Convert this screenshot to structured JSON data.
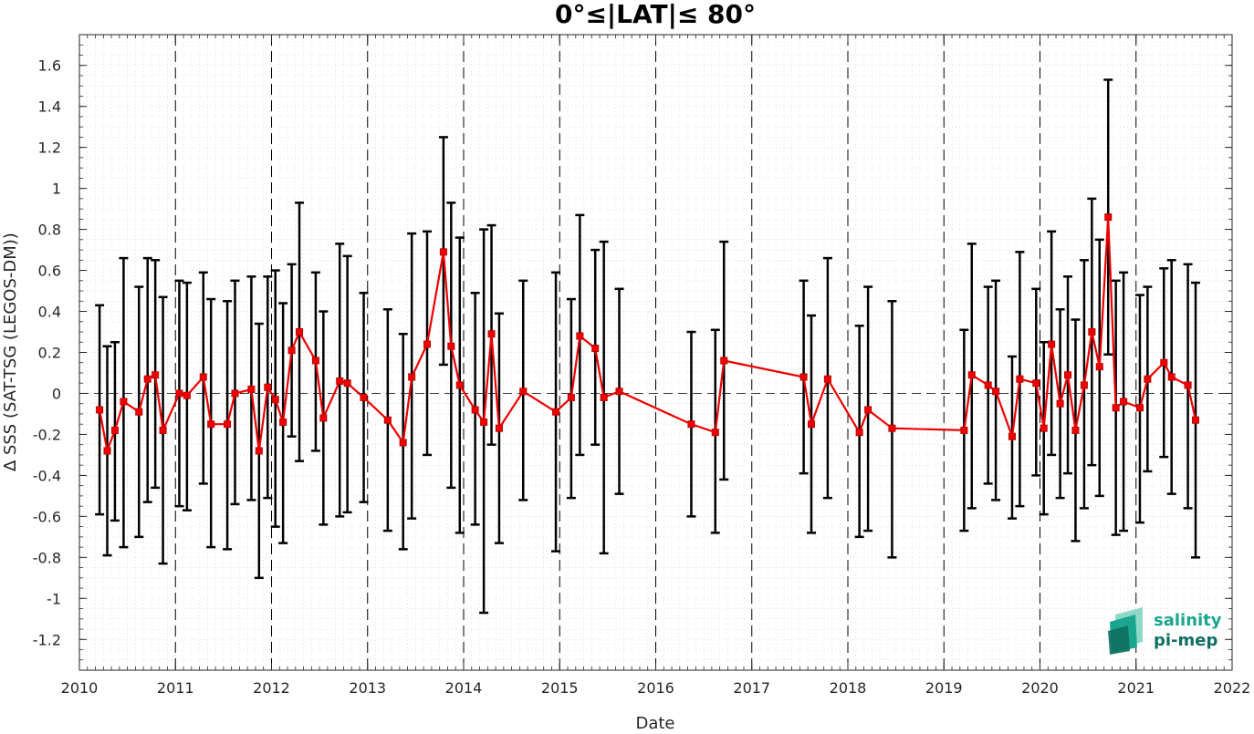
{
  "chart_data": {
    "type": "line",
    "title": "0°≤|LAT|≤ 80°",
    "xlabel": "Date",
    "ylabel": "∆ SSS (SAT-TSG (LEGOS-DM))",
    "xlim": [
      2010,
      2022
    ],
    "ylim": [
      -1.35,
      1.75
    ],
    "x_ticks": [
      2010,
      2011,
      2012,
      2013,
      2014,
      2015,
      2016,
      2017,
      2018,
      2019,
      2020,
      2021,
      2022
    ],
    "y_ticks": [
      -1.2,
      -1,
      -0.8,
      -0.6,
      -0.4,
      -0.2,
      0,
      0.2,
      0.4,
      0.6,
      0.8,
      1,
      1.2,
      1.4,
      1.6
    ],
    "grid": "minor dotted",
    "year_separators": "dashed vertical lines at each year",
    "zero_line": "dashed horizontal line at 0",
    "series": [
      {
        "color": "#ee0000",
        "errorbar_color": "#000000",
        "marker": "square",
        "points": [
          {
            "x": 2010.21,
            "y": -0.08,
            "lo": -0.59,
            "hi": 0.43
          },
          {
            "x": 2010.29,
            "y": -0.28,
            "lo": -0.79,
            "hi": 0.23
          },
          {
            "x": 2010.37,
            "y": -0.18,
            "lo": -0.62,
            "hi": 0.25
          },
          {
            "x": 2010.46,
            "y": -0.04,
            "lo": -0.75,
            "hi": 0.66
          },
          {
            "x": 2010.62,
            "y": -0.09,
            "lo": -0.7,
            "hi": 0.52
          },
          {
            "x": 2010.71,
            "y": 0.07,
            "lo": -0.53,
            "hi": 0.66
          },
          {
            "x": 2010.79,
            "y": 0.09,
            "lo": -0.46,
            "hi": 0.65
          },
          {
            "x": 2010.87,
            "y": -0.18,
            "lo": -0.83,
            "hi": 0.47
          },
          {
            "x": 2011.04,
            "y": 0.0,
            "lo": -0.55,
            "hi": 0.55
          },
          {
            "x": 2011.12,
            "y": -0.01,
            "lo": -0.57,
            "hi": 0.54
          },
          {
            "x": 2011.29,
            "y": 0.08,
            "lo": -0.44,
            "hi": 0.59
          },
          {
            "x": 2011.37,
            "y": -0.15,
            "lo": -0.75,
            "hi": 0.46
          },
          {
            "x": 2011.54,
            "y": -0.15,
            "lo": -0.76,
            "hi": 0.45
          },
          {
            "x": 2011.62,
            "y": 0.0,
            "lo": -0.54,
            "hi": 0.55
          },
          {
            "x": 2011.79,
            "y": 0.02,
            "lo": -0.52,
            "hi": 0.57
          },
          {
            "x": 2011.87,
            "y": -0.28,
            "lo": -0.9,
            "hi": 0.34
          },
          {
            "x": 2011.96,
            "y": 0.03,
            "lo": -0.51,
            "hi": 0.57
          },
          {
            "x": 2012.04,
            "y": -0.03,
            "lo": -0.65,
            "hi": 0.6
          },
          {
            "x": 2012.12,
            "y": -0.14,
            "lo": -0.73,
            "hi": 0.44
          },
          {
            "x": 2012.21,
            "y": 0.21,
            "lo": -0.21,
            "hi": 0.63
          },
          {
            "x": 2012.29,
            "y": 0.3,
            "lo": -0.33,
            "hi": 0.93
          },
          {
            "x": 2012.46,
            "y": 0.16,
            "lo": -0.28,
            "hi": 0.59
          },
          {
            "x": 2012.54,
            "y": -0.12,
            "lo": -0.64,
            "hi": 0.4
          },
          {
            "x": 2012.71,
            "y": 0.06,
            "lo": -0.6,
            "hi": 0.73
          },
          {
            "x": 2012.79,
            "y": 0.05,
            "lo": -0.58,
            "hi": 0.67
          },
          {
            "x": 2012.96,
            "y": -0.02,
            "lo": -0.53,
            "hi": 0.49
          },
          {
            "x": 2013.21,
            "y": -0.13,
            "lo": -0.67,
            "hi": 0.41
          },
          {
            "x": 2013.37,
            "y": -0.24,
            "lo": -0.76,
            "hi": 0.29
          },
          {
            "x": 2013.46,
            "y": 0.08,
            "lo": -0.61,
            "hi": 0.78
          },
          {
            "x": 2013.62,
            "y": 0.24,
            "lo": -0.3,
            "hi": 0.79
          },
          {
            "x": 2013.79,
            "y": 0.69,
            "lo": 0.14,
            "hi": 1.25
          },
          {
            "x": 2013.87,
            "y": 0.23,
            "lo": -0.46,
            "hi": 0.93
          },
          {
            "x": 2013.96,
            "y": 0.04,
            "lo": -0.68,
            "hi": 0.76
          },
          {
            "x": 2014.12,
            "y": -0.08,
            "lo": -0.64,
            "hi": 0.49
          },
          {
            "x": 2014.21,
            "y": -0.14,
            "lo": -1.07,
            "hi": 0.8
          },
          {
            "x": 2014.29,
            "y": 0.29,
            "lo": -0.25,
            "hi": 0.82
          },
          {
            "x": 2014.37,
            "y": -0.17,
            "lo": -0.73,
            "hi": 0.39
          },
          {
            "x": 2014.62,
            "y": 0.01,
            "lo": -0.52,
            "hi": 0.55
          },
          {
            "x": 2014.96,
            "y": -0.09,
            "lo": -0.77,
            "hi": 0.59
          },
          {
            "x": 2015.12,
            "y": -0.02,
            "lo": -0.51,
            "hi": 0.46
          },
          {
            "x": 2015.21,
            "y": 0.28,
            "lo": -0.3,
            "hi": 0.87
          },
          {
            "x": 2015.37,
            "y": 0.22,
            "lo": -0.25,
            "hi": 0.7
          },
          {
            "x": 2015.46,
            "y": -0.02,
            "lo": -0.78,
            "hi": 0.74
          },
          {
            "x": 2015.62,
            "y": 0.01,
            "lo": -0.49,
            "hi": 0.51
          },
          {
            "x": 2016.37,
            "y": -0.15,
            "lo": -0.6,
            "hi": 0.3
          },
          {
            "x": 2016.62,
            "y": -0.19,
            "lo": -0.68,
            "hi": 0.31
          },
          {
            "x": 2016.71,
            "y": 0.16,
            "lo": -0.42,
            "hi": 0.74
          },
          {
            "x": 2017.54,
            "y": 0.08,
            "lo": -0.39,
            "hi": 0.55
          },
          {
            "x": 2017.62,
            "y": -0.15,
            "lo": -0.68,
            "hi": 0.38
          },
          {
            "x": 2017.79,
            "y": 0.07,
            "lo": -0.51,
            "hi": 0.66
          },
          {
            "x": 2018.12,
            "y": -0.19,
            "lo": -0.7,
            "hi": 0.33
          },
          {
            "x": 2018.21,
            "y": -0.08,
            "lo": -0.67,
            "hi": 0.52
          },
          {
            "x": 2018.46,
            "y": -0.17,
            "lo": -0.8,
            "hi": 0.45
          },
          {
            "x": 2019.21,
            "y": -0.18,
            "lo": -0.67,
            "hi": 0.31
          },
          {
            "x": 2019.29,
            "y": 0.09,
            "lo": -0.56,
            "hi": 0.73
          },
          {
            "x": 2019.46,
            "y": 0.04,
            "lo": -0.44,
            "hi": 0.52
          },
          {
            "x": 2019.54,
            "y": 0.01,
            "lo": -0.52,
            "hi": 0.55
          },
          {
            "x": 2019.71,
            "y": -0.21,
            "lo": -0.61,
            "hi": 0.18
          },
          {
            "x": 2019.79,
            "y": 0.07,
            "lo": -0.55,
            "hi": 0.69
          },
          {
            "x": 2019.96,
            "y": 0.05,
            "lo": -0.4,
            "hi": 0.51
          },
          {
            "x": 2020.04,
            "y": -0.17,
            "lo": -0.59,
            "hi": 0.25
          },
          {
            "x": 2020.12,
            "y": 0.24,
            "lo": -0.3,
            "hi": 0.79
          },
          {
            "x": 2020.21,
            "y": -0.05,
            "lo": -0.51,
            "hi": 0.41
          },
          {
            "x": 2020.29,
            "y": 0.09,
            "lo": -0.39,
            "hi": 0.57
          },
          {
            "x": 2020.37,
            "y": -0.18,
            "lo": -0.72,
            "hi": 0.36
          },
          {
            "x": 2020.46,
            "y": 0.04,
            "lo": -0.56,
            "hi": 0.65
          },
          {
            "x": 2020.54,
            "y": 0.3,
            "lo": -0.35,
            "hi": 0.95
          },
          {
            "x": 2020.62,
            "y": 0.13,
            "lo": -0.5,
            "hi": 0.75
          },
          {
            "x": 2020.71,
            "y": 0.86,
            "lo": 0.19,
            "hi": 1.53
          },
          {
            "x": 2020.79,
            "y": -0.07,
            "lo": -0.69,
            "hi": 0.55
          },
          {
            "x": 2020.87,
            "y": -0.04,
            "lo": -0.67,
            "hi": 0.59
          },
          {
            "x": 2021.04,
            "y": -0.07,
            "lo": -0.63,
            "hi": 0.48
          },
          {
            "x": 2021.12,
            "y": 0.07,
            "lo": -0.38,
            "hi": 0.52
          },
          {
            "x": 2021.29,
            "y": 0.15,
            "lo": -0.31,
            "hi": 0.61
          },
          {
            "x": 2021.37,
            "y": 0.08,
            "lo": -0.49,
            "hi": 0.65
          },
          {
            "x": 2021.54,
            "y": 0.04,
            "lo": -0.56,
            "hi": 0.63
          },
          {
            "x": 2021.62,
            "y": -0.13,
            "lo": -0.8,
            "hi": 0.54
          }
        ]
      }
    ]
  },
  "logo": {
    "line1": "salinity",
    "line2": "pi-mep",
    "colors": [
      "#1aa58f",
      "#0e6f61",
      "#8fd9c9"
    ]
  }
}
